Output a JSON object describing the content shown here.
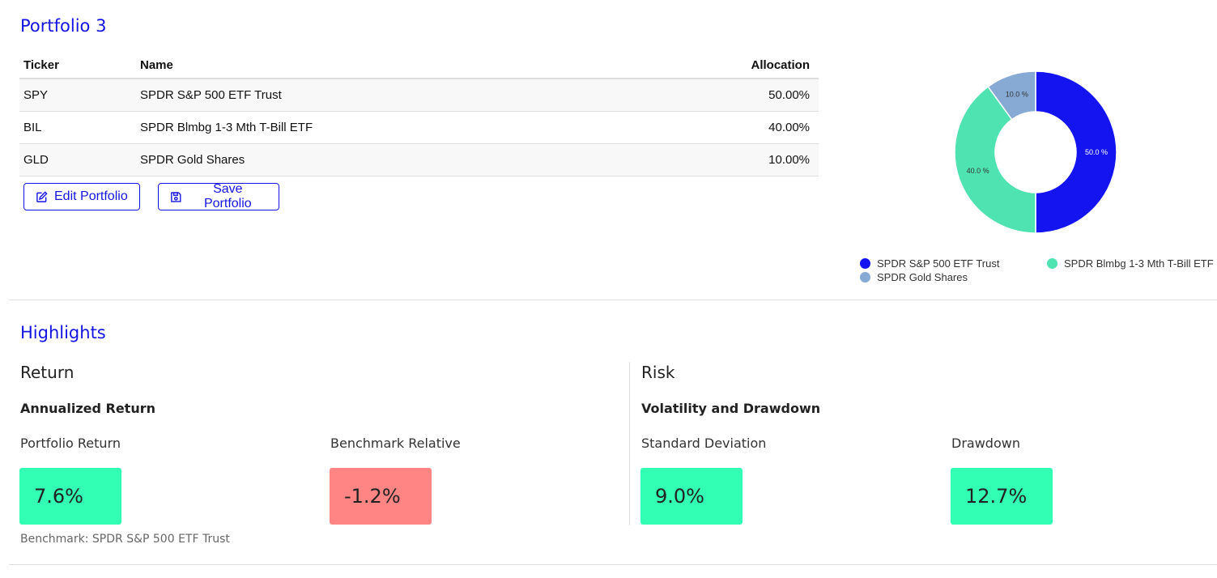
{
  "portfolio": {
    "title": "Portfolio 3",
    "columns": {
      "ticker": "Ticker",
      "name": "Name",
      "allocation": "Allocation"
    },
    "holdings": [
      {
        "ticker": "SPY",
        "name": "SPDR S&P 500 ETF Trust",
        "allocation": "50.00%"
      },
      {
        "ticker": "BIL",
        "name": "SPDR Blmbg 1-3 Mth T-Bill ETF",
        "allocation": "40.00%"
      },
      {
        "ticker": "GLD",
        "name": "SPDR Gold Shares",
        "allocation": "10.00%"
      }
    ],
    "buttons": {
      "edit": "Edit Portfolio",
      "save": "Save Portfolio"
    },
    "icons": {
      "edit": "edit-icon",
      "save": "save-icon"
    }
  },
  "chart_data": {
    "type": "pie",
    "donut": true,
    "slices": [
      {
        "label": "SPDR S&P 500 ETF Trust",
        "value": 50.0,
        "text": "50.0 %",
        "color": "#1414f0"
      },
      {
        "label": "SPDR Blmbg 1-3 Mth T-Bill ETF",
        "value": 40.0,
        "text": "40.0 %",
        "color": "#4ee3b0"
      },
      {
        "label": "SPDR Gold Shares",
        "value": 10.0,
        "text": "10.0 %",
        "color": "#87aad4"
      }
    ],
    "legend_position": "bottom"
  },
  "highlights": {
    "title": "Highlights",
    "return": {
      "heading": "Return",
      "subheading": "Annualized Return",
      "portfolio_label": "Portfolio Return",
      "portfolio_value": "7.6%",
      "benchmark_label": "Benchmark Relative",
      "benchmark_value": "-1.2%",
      "benchmark_note": "Benchmark: SPDR S&P 500 ETF Trust"
    },
    "risk": {
      "heading": "Risk",
      "subheading": "Volatility and Drawdown",
      "std_label": "Standard Deviation",
      "std_value": "9.0%",
      "drawdown_label": "Drawdown",
      "drawdown_value": "12.7%"
    },
    "colors": {
      "positive": "#33ffb4",
      "negative": "#ff8585"
    }
  }
}
